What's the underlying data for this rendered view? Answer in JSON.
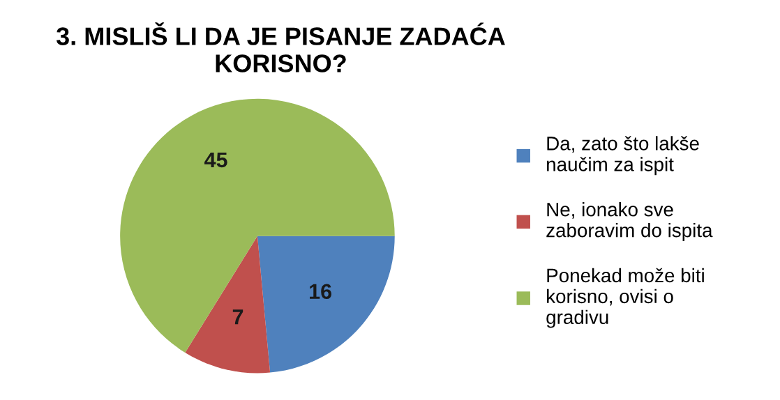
{
  "chart_data": {
    "type": "pie",
    "title": "3. MISLIŠ LI DA JE PISANJE ZADAĆA KORISNO?",
    "categories": [
      "Da, zato što lakše naučim za ispit",
      "Ne, ionako sve zaboravim do ispita",
      "Ponekad može biti korisno, ovisi o gradivu"
    ],
    "values": [
      16,
      7,
      45
    ],
    "colors": [
      "#4f81bd",
      "#c0504d",
      "#9bbb59"
    ],
    "data_labels": true,
    "legend": "right"
  }
}
